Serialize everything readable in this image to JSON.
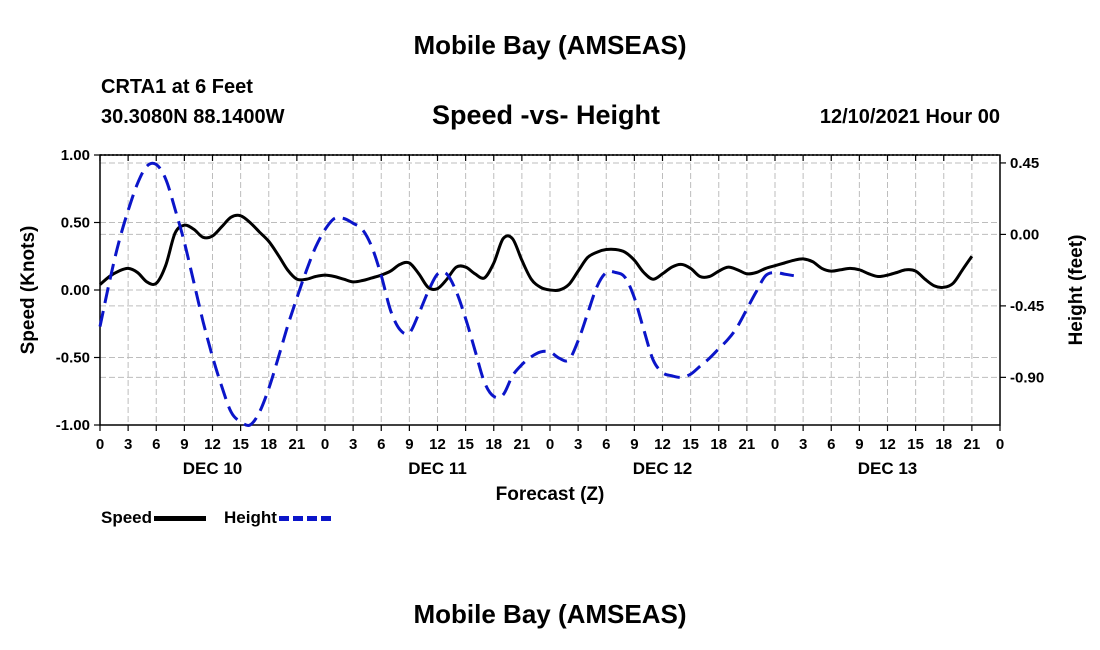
{
  "header": {
    "title": "Mobile Bay (AMSEAS)",
    "station": "CRTA1 at 6 Feet",
    "coords": "30.3080N  88.1400W",
    "subtitle": "Speed -vs- Height",
    "run_time": "12/10/2021 Hour 00"
  },
  "footer": {
    "title": "Mobile Bay (AMSEAS)"
  },
  "legend": {
    "speed": "Speed",
    "height": "Height"
  },
  "chart_data": {
    "type": "line",
    "title": "Speed -vs- Height",
    "xlabel": "Forecast (Z)",
    "ylabel": "Speed (Knots)",
    "y2label": "Height (feet)",
    "xlim": [
      0,
      96
    ],
    "ylim": [
      -1.0,
      1.0
    ],
    "y2lim": [
      -1.2,
      0.5
    ],
    "grid": true,
    "x_ticks": [
      0,
      3,
      6,
      9,
      12,
      15,
      18,
      21,
      24,
      27,
      30,
      33,
      36,
      39,
      42,
      45,
      48,
      51,
      54,
      57,
      60,
      63,
      66,
      69,
      72,
      75,
      78,
      81,
      84,
      87,
      90,
      93,
      96
    ],
    "x_tick_labels": [
      "0",
      "3",
      "6",
      "9",
      "12",
      "15",
      "18",
      "21",
      "0",
      "3",
      "6",
      "9",
      "12",
      "15",
      "18",
      "21",
      "0",
      "3",
      "6",
      "9",
      "12",
      "15",
      "18",
      "21",
      "0",
      "3",
      "6",
      "9",
      "12",
      "15",
      "18",
      "21",
      "0"
    ],
    "day_labels": [
      {
        "x": 12,
        "label": "DEC 10"
      },
      {
        "x": 36,
        "label": "DEC 11"
      },
      {
        "x": 60,
        "label": "DEC 12"
      },
      {
        "x": 84,
        "label": "DEC 13"
      }
    ],
    "y_ticks": [
      1.0,
      0.5,
      0.0,
      -0.5,
      -1.0
    ],
    "y_tick_labels": [
      "1.00",
      "0.50",
      "0.00",
      "-0.50",
      "-1.00"
    ],
    "y2_ticks": [
      0.45,
      0.0,
      -0.45,
      -0.9
    ],
    "y2_tick_labels": [
      "0.45",
      "0.00",
      "-0.45",
      "-0.90"
    ],
    "series": [
      {
        "name": "Speed",
        "axis": "left",
        "color": "#000000",
        "dash": "solid",
        "points": [
          [
            0,
            0.04
          ],
          [
            1,
            0.1
          ],
          [
            2,
            0.14
          ],
          [
            3,
            0.16
          ],
          [
            4,
            0.13
          ],
          [
            5,
            0.06
          ],
          [
            6,
            0.05
          ],
          [
            7,
            0.18
          ],
          [
            8,
            0.42
          ],
          [
            9,
            0.48
          ],
          [
            10,
            0.45
          ],
          [
            11,
            0.39
          ],
          [
            12,
            0.4
          ],
          [
            13,
            0.47
          ],
          [
            14,
            0.54
          ],
          [
            15,
            0.55
          ],
          [
            16,
            0.5
          ],
          [
            17,
            0.43
          ],
          [
            18,
            0.36
          ],
          [
            19,
            0.26
          ],
          [
            20,
            0.15
          ],
          [
            21,
            0.08
          ],
          [
            22,
            0.08
          ],
          [
            23,
            0.1
          ],
          [
            24,
            0.11
          ],
          [
            25,
            0.1
          ],
          [
            26,
            0.08
          ],
          [
            27,
            0.06
          ],
          [
            28,
            0.07
          ],
          [
            29,
            0.09
          ],
          [
            30,
            0.11
          ],
          [
            31,
            0.14
          ],
          [
            32,
            0.19
          ],
          [
            33,
            0.2
          ],
          [
            34,
            0.12
          ],
          [
            35,
            0.02
          ],
          [
            36,
            0.01
          ],
          [
            37,
            0.08
          ],
          [
            38,
            0.17
          ],
          [
            39,
            0.17
          ],
          [
            40,
            0.12
          ],
          [
            41,
            0.09
          ],
          [
            42,
            0.2
          ],
          [
            43,
            0.38
          ],
          [
            44,
            0.38
          ],
          [
            45,
            0.22
          ],
          [
            46,
            0.08
          ],
          [
            47,
            0.02
          ],
          [
            48,
            0.0
          ],
          [
            49,
            0.0
          ],
          [
            50,
            0.04
          ],
          [
            51,
            0.14
          ],
          [
            52,
            0.24
          ],
          [
            53,
            0.28
          ],
          [
            54,
            0.3
          ],
          [
            55,
            0.3
          ],
          [
            56,
            0.28
          ],
          [
            57,
            0.22
          ],
          [
            58,
            0.13
          ],
          [
            59,
            0.08
          ],
          [
            60,
            0.12
          ],
          [
            61,
            0.17
          ],
          [
            62,
            0.19
          ],
          [
            63,
            0.16
          ],
          [
            64,
            0.1
          ],
          [
            65,
            0.1
          ],
          [
            66,
            0.14
          ],
          [
            67,
            0.17
          ],
          [
            68,
            0.15
          ],
          [
            69,
            0.12
          ],
          [
            70,
            0.13
          ],
          [
            71,
            0.16
          ],
          [
            72,
            0.18
          ],
          [
            73,
            0.2
          ],
          [
            74,
            0.22
          ],
          [
            75,
            0.23
          ],
          [
            76,
            0.21
          ],
          [
            77,
            0.16
          ],
          [
            78,
            0.14
          ],
          [
            79,
            0.15
          ],
          [
            80,
            0.16
          ],
          [
            81,
            0.15
          ],
          [
            82,
            0.12
          ],
          [
            83,
            0.1
          ],
          [
            84,
            0.11
          ],
          [
            85,
            0.13
          ],
          [
            86,
            0.15
          ],
          [
            87,
            0.14
          ],
          [
            88,
            0.08
          ],
          [
            89,
            0.03
          ],
          [
            90,
            0.02
          ],
          [
            91,
            0.05
          ],
          [
            92,
            0.15
          ],
          [
            93,
            0.25
          ]
        ]
      },
      {
        "name": "Height",
        "axis": "right",
        "color": "#0b15c9",
        "dash": "dashed",
        "points": [
          [
            0,
            -0.58
          ],
          [
            1,
            -0.3
          ],
          [
            2,
            -0.05
          ],
          [
            3,
            0.15
          ],
          [
            4,
            0.32
          ],
          [
            5,
            0.43
          ],
          [
            6,
            0.44
          ],
          [
            7,
            0.35
          ],
          [
            8,
            0.16
          ],
          [
            9,
            -0.05
          ],
          [
            10,
            -0.3
          ],
          [
            11,
            -0.55
          ],
          [
            12,
            -0.77
          ],
          [
            13,
            -0.96
          ],
          [
            14,
            -1.12
          ],
          [
            15,
            -1.18
          ],
          [
            16,
            -1.2
          ],
          [
            17,
            -1.12
          ],
          [
            18,
            -0.97
          ],
          [
            19,
            -0.78
          ],
          [
            20,
            -0.58
          ],
          [
            21,
            -0.4
          ],
          [
            22,
            -0.23
          ],
          [
            23,
            -0.08
          ],
          [
            24,
            0.03
          ],
          [
            25,
            0.1
          ],
          [
            26,
            0.1
          ],
          [
            27,
            0.07
          ],
          [
            28,
            0.03
          ],
          [
            29,
            -0.08
          ],
          [
            30,
            -0.26
          ],
          [
            31,
            -0.48
          ],
          [
            32,
            -0.6
          ],
          [
            33,
            -0.62
          ],
          [
            34,
            -0.5
          ],
          [
            35,
            -0.36
          ],
          [
            36,
            -0.25
          ],
          [
            37,
            -0.25
          ],
          [
            38,
            -0.36
          ],
          [
            39,
            -0.53
          ],
          [
            40,
            -0.73
          ],
          [
            41,
            -0.93
          ],
          [
            42,
            -1.02
          ],
          [
            43,
            -1.01
          ],
          [
            44,
            -0.89
          ],
          [
            45,
            -0.82
          ],
          [
            46,
            -0.77
          ],
          [
            47,
            -0.74
          ],
          [
            48,
            -0.74
          ],
          [
            49,
            -0.78
          ],
          [
            50,
            -0.79
          ],
          [
            51,
            -0.67
          ],
          [
            52,
            -0.5
          ],
          [
            53,
            -0.33
          ],
          [
            54,
            -0.24
          ],
          [
            55,
            -0.24
          ],
          [
            56,
            -0.27
          ],
          [
            57,
            -0.4
          ],
          [
            58,
            -0.6
          ],
          [
            59,
            -0.79
          ],
          [
            60,
            -0.87
          ],
          [
            61,
            -0.89
          ],
          [
            62,
            -0.9
          ],
          [
            63,
            -0.88
          ],
          [
            64,
            -0.83
          ],
          [
            65,
            -0.78
          ],
          [
            66,
            -0.72
          ],
          [
            67,
            -0.66
          ],
          [
            68,
            -0.58
          ],
          [
            69,
            -0.47
          ],
          [
            70,
            -0.36
          ],
          [
            71,
            -0.26
          ],
          [
            72,
            -0.24
          ],
          [
            73,
            -0.25
          ],
          [
            74,
            -0.26
          ]
        ]
      }
    ]
  }
}
